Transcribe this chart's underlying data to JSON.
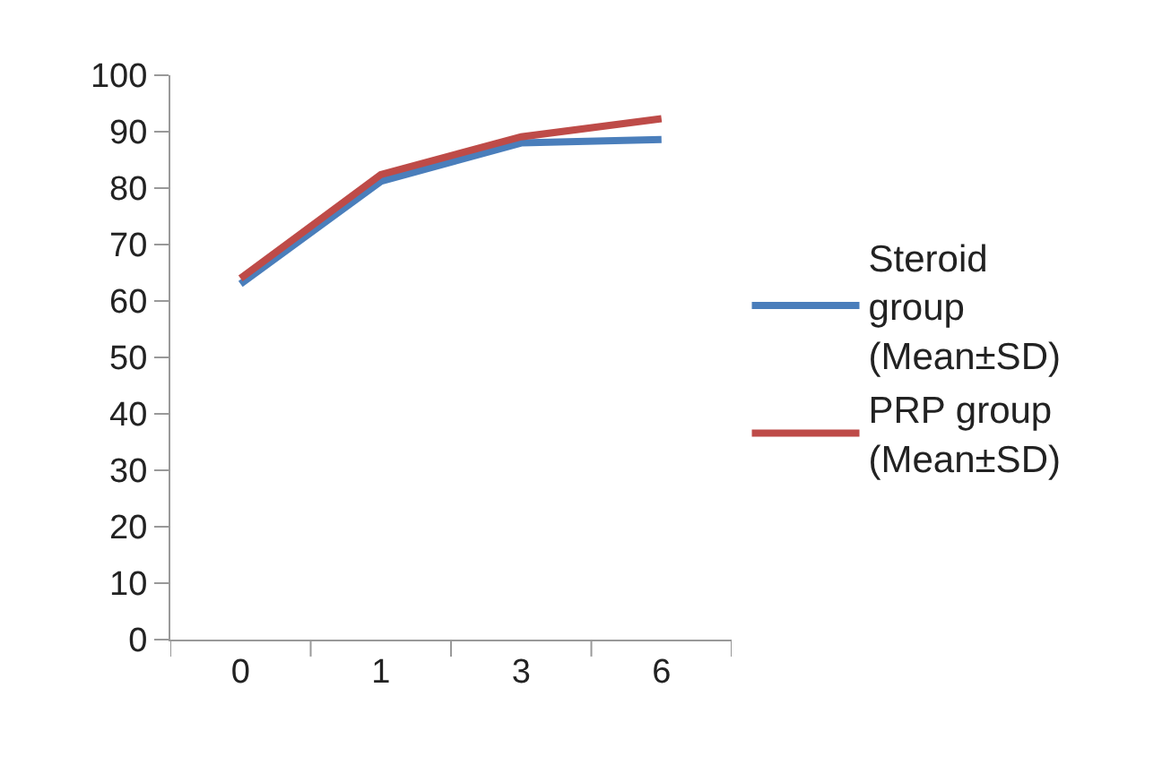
{
  "chart_data": {
    "type": "line",
    "categories": [
      "0",
      "1",
      "3",
      "6"
    ],
    "series": [
      {
        "name": "Steroid group (Mean±SD)",
        "color": "#4a7ebb",
        "values": [
          63,
          81.2,
          88,
          88.6
        ]
      },
      {
        "name": "PRP group (Mean±SD)",
        "color": "#be4b48",
        "values": [
          64,
          82.4,
          89.1,
          92.3
        ]
      }
    ],
    "ylim": [
      0,
      100
    ],
    "yticks": [
      0,
      10,
      20,
      30,
      40,
      50,
      60,
      70,
      80,
      90,
      100
    ],
    "grid": false,
    "legend": "right",
    "marker": "none",
    "line_style": "solid"
  }
}
